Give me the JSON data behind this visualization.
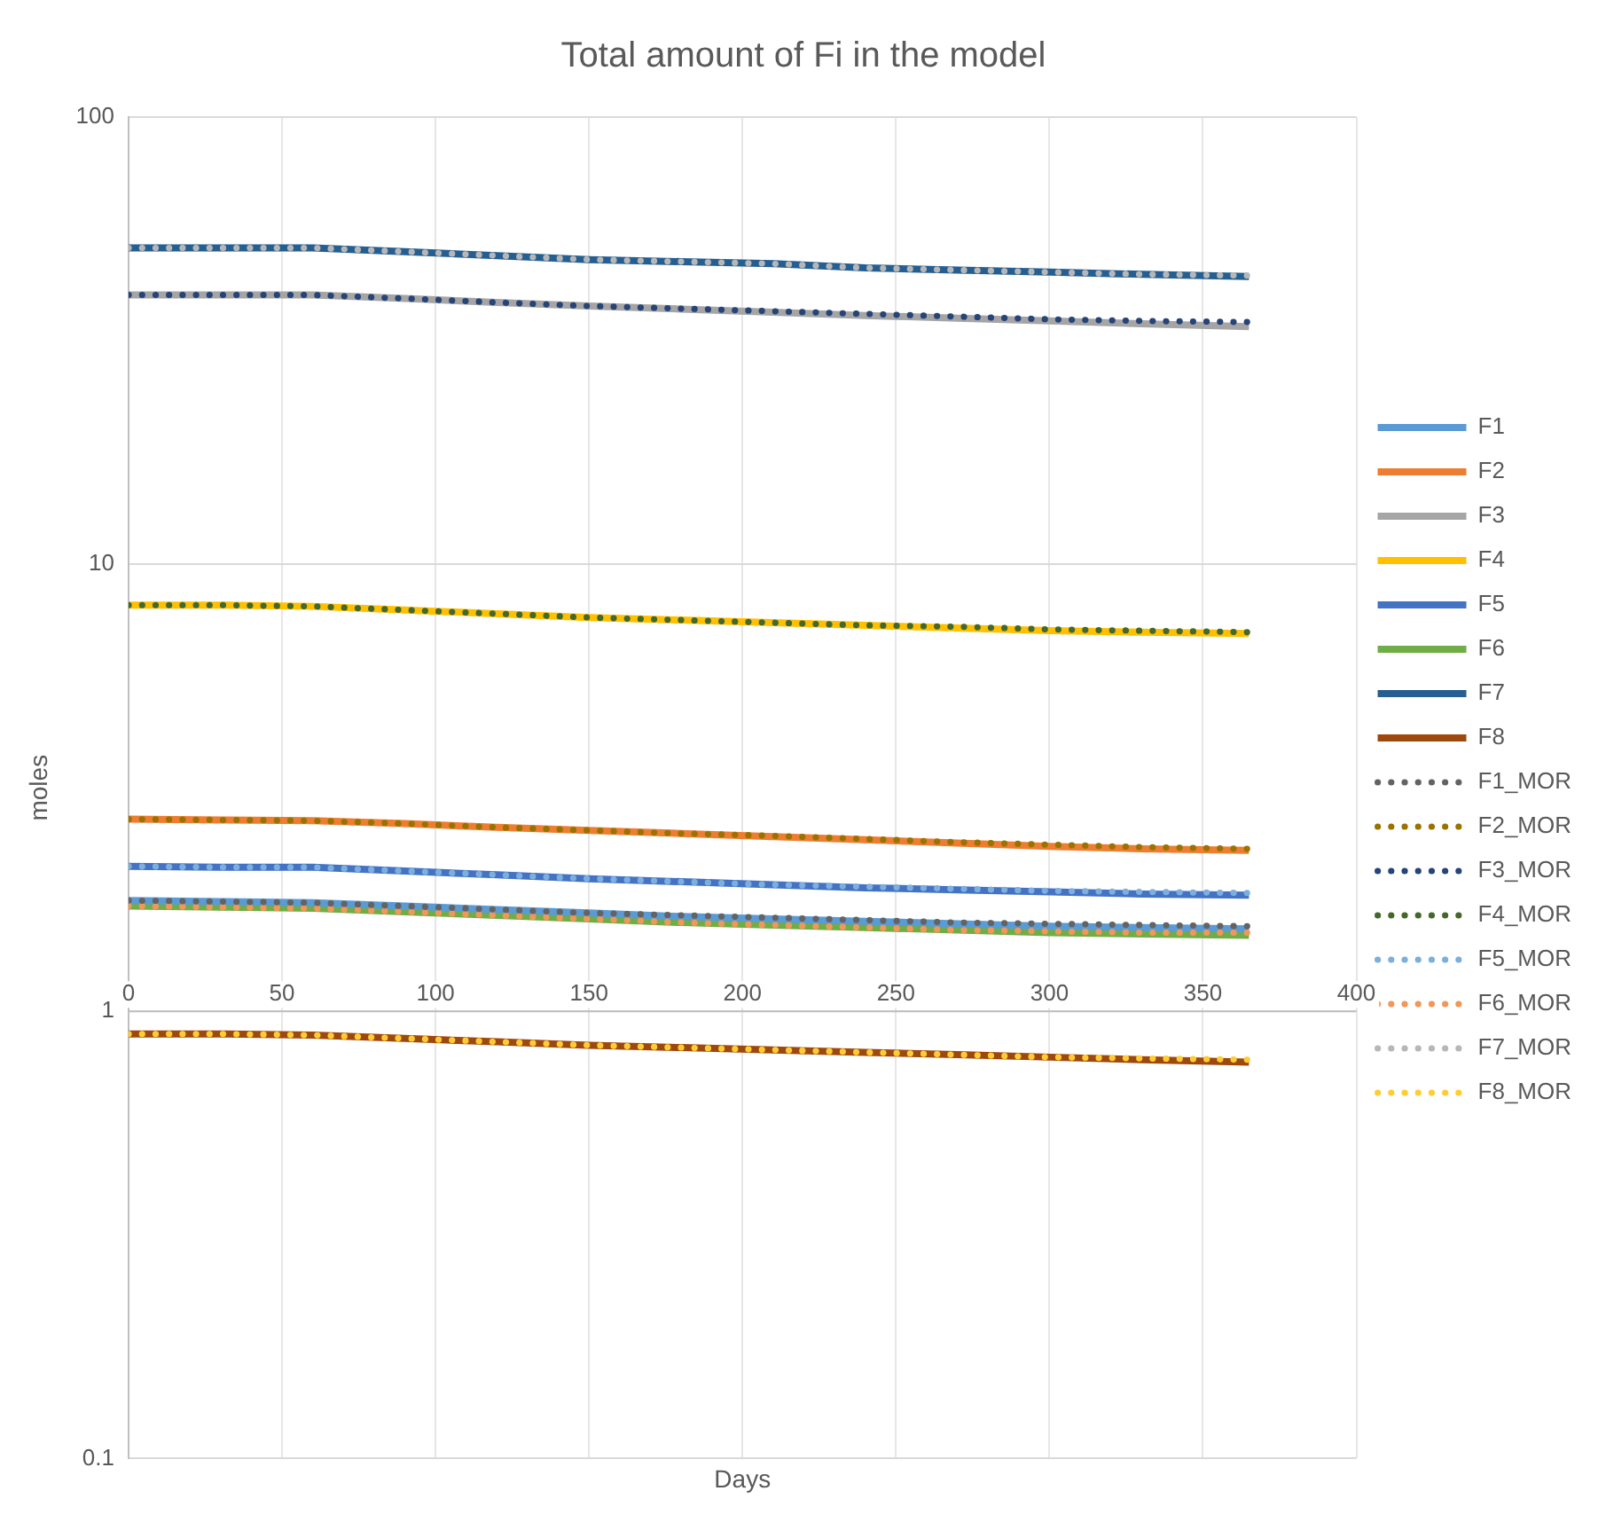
{
  "chart_data": {
    "type": "line",
    "title": "Total amount of Fi in the model",
    "xlabel": "Days",
    "ylabel": "moles",
    "x": [
      0,
      30,
      60,
      90,
      120,
      150,
      180,
      210,
      240,
      270,
      300,
      330,
      365
    ],
    "xlim": [
      0,
      400
    ],
    "xticks": [
      0,
      50,
      100,
      150,
      200,
      250,
      300,
      350,
      400
    ],
    "ylim": [
      0.1,
      100
    ],
    "yticks": [
      0.1,
      1,
      10,
      100
    ],
    "log": "y",
    "grid": true,
    "legend": "right",
    "marker": "none",
    "series": [
      {
        "name": "F1",
        "color": "#5b9bd5",
        "line_style": "solid",
        "values": [
          1.77,
          1.76,
          1.75,
          1.72,
          1.69,
          1.66,
          1.63,
          1.61,
          1.59,
          1.57,
          1.55,
          1.54,
          1.53
        ]
      },
      {
        "name": "F2",
        "color": "#ed7d31",
        "line_style": "solid",
        "values": [
          2.69,
          2.68,
          2.67,
          2.63,
          2.58,
          2.54,
          2.5,
          2.46,
          2.42,
          2.38,
          2.34,
          2.31,
          2.29
        ]
      },
      {
        "name": "F3",
        "color": "#a5a5a5",
        "line_style": "solid",
        "values": [
          40,
          40,
          40,
          39.3,
          38.5,
          37.8,
          37.2,
          36.6,
          36,
          35.5,
          35,
          34.5,
          34
        ]
      },
      {
        "name": "F4",
        "color": "#ffc000",
        "line_style": "solid",
        "values": [
          8.1,
          8.1,
          8.05,
          7.9,
          7.75,
          7.6,
          7.5,
          7.4,
          7.3,
          7.2,
          7.1,
          7.05,
          7
        ]
      },
      {
        "name": "F5",
        "color": "#4472c4",
        "line_style": "solid",
        "values": [
          2.11,
          2.1,
          2.1,
          2.06,
          2.02,
          1.98,
          1.95,
          1.92,
          1.89,
          1.87,
          1.85,
          1.83,
          1.82
        ]
      },
      {
        "name": "F6",
        "color": "#70ad47",
        "line_style": "solid",
        "values": [
          1.72,
          1.71,
          1.7,
          1.67,
          1.64,
          1.61,
          1.58,
          1.56,
          1.54,
          1.52,
          1.5,
          1.49,
          1.48
        ]
      },
      {
        "name": "F7",
        "color": "#255e91",
        "line_style": "solid",
        "values": [
          51,
          51,
          51,
          50,
          49,
          48,
          47.5,
          47,
          46,
          45.5,
          45,
          44.5,
          44
        ]
      },
      {
        "name": "F8",
        "color": "#9e480e",
        "line_style": "solid",
        "values": [
          0.89,
          0.89,
          0.885,
          0.87,
          0.855,
          0.84,
          0.83,
          0.82,
          0.81,
          0.8,
          0.79,
          0.78,
          0.77
        ]
      },
      {
        "name": "F1_MOR",
        "color": "#636363",
        "line_style": "dotted",
        "values": [
          1.77,
          1.76,
          1.75,
          1.72,
          1.69,
          1.66,
          1.64,
          1.62,
          1.6,
          1.58,
          1.57,
          1.56,
          1.55
        ]
      },
      {
        "name": "F2_MOR",
        "color": "#997300",
        "line_style": "dotted",
        "values": [
          2.69,
          2.68,
          2.67,
          2.63,
          2.58,
          2.54,
          2.5,
          2.47,
          2.43,
          2.39,
          2.36,
          2.33,
          2.31
        ]
      },
      {
        "name": "F3_MOR",
        "color": "#264478",
        "line_style": "dotted",
        "values": [
          40,
          40,
          40,
          39.3,
          38.5,
          37.8,
          37.3,
          36.8,
          36.3,
          35.8,
          35.3,
          35,
          34.8
        ]
      },
      {
        "name": "F4_MOR",
        "color": "#43682b",
        "line_style": "dotted",
        "values": [
          8.1,
          8.1,
          8.05,
          7.9,
          7.75,
          7.6,
          7.5,
          7.4,
          7.3,
          7.25,
          7.15,
          7.1,
          7.05
        ]
      },
      {
        "name": "F5_MOR",
        "color": "#7cafdd",
        "line_style": "dotted",
        "values": [
          2.11,
          2.1,
          2.1,
          2.06,
          2.02,
          1.98,
          1.95,
          1.92,
          1.9,
          1.88,
          1.86,
          1.85,
          1.84
        ]
      },
      {
        "name": "F6_MOR",
        "color": "#f1975a",
        "line_style": "dotted",
        "values": [
          1.72,
          1.71,
          1.7,
          1.67,
          1.64,
          1.61,
          1.58,
          1.56,
          1.54,
          1.52,
          1.51,
          1.5,
          1.5
        ]
      },
      {
        "name": "F7_MOR",
        "color": "#b7b7b7",
        "line_style": "dotted",
        "values": [
          51,
          51,
          51,
          50,
          49,
          48,
          47.5,
          47,
          46,
          45.5,
          45,
          44.5,
          44.2
        ]
      },
      {
        "name": "F8_MOR",
        "color": "#ffcd33",
        "line_style": "dotted",
        "values": [
          0.89,
          0.89,
          0.885,
          0.87,
          0.855,
          0.84,
          0.83,
          0.82,
          0.81,
          0.8,
          0.79,
          0.785,
          0.78
        ]
      }
    ]
  }
}
